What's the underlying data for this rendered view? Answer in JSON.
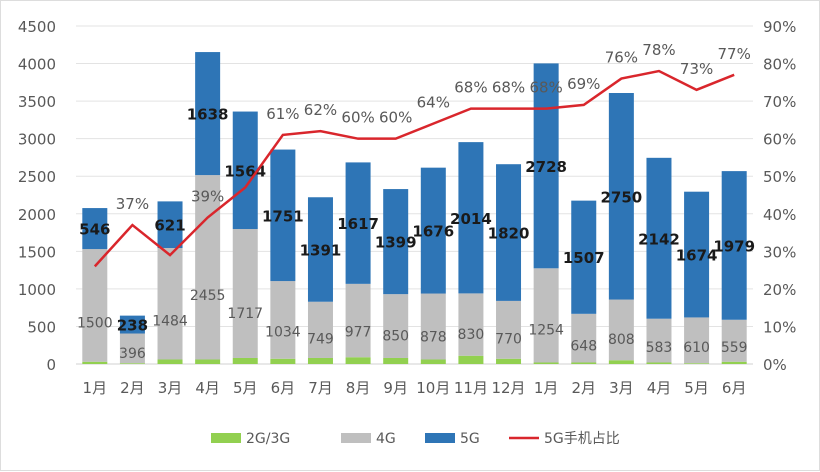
{
  "chart_data": {
    "type": "bar",
    "title": "",
    "categories": [
      "1月",
      "2月",
      "3月",
      "4月",
      "5月",
      "6月",
      "7月",
      "8月",
      "9月",
      "10月",
      "11月",
      "12月",
      "1月",
      "2月",
      "3月",
      "4月",
      "5月",
      "6月"
    ],
    "series": [
      {
        "name": "2G/3G",
        "type": "bar",
        "color": "#92d050",
        "values": [
          30,
          10,
          60,
          60,
          80,
          70,
          80,
          90,
          80,
          60,
          110,
          70,
          20,
          20,
          50,
          20,
          10,
          30
        ]
      },
      {
        "name": "4G",
        "type": "bar",
        "color": "#bfbfbf",
        "values": [
          1500,
          396,
          1484,
          2455,
          1717,
          1034,
          749,
          977,
          850,
          878,
          830,
          770,
          1254,
          648,
          808,
          583,
          610,
          559
        ]
      },
      {
        "name": "5G",
        "type": "bar",
        "color": "#2e75b6",
        "values": [
          546,
          238,
          621,
          1638,
          1564,
          1751,
          1391,
          1617,
          1399,
          1676,
          2014,
          1820,
          2728,
          1507,
          2750,
          2142,
          1674,
          1979
        ]
      },
      {
        "name": "5G手机占比",
        "type": "line",
        "axis": "right",
        "color": "#d9262c",
        "values": [
          26,
          37,
          29,
          39,
          47,
          61,
          62,
          60,
          60,
          64,
          68,
          68,
          68,
          69,
          76,
          78,
          73,
          77
        ],
        "labels": [
          "",
          "37%",
          "",
          "39%",
          "",
          "61%",
          "62%",
          "60%",
          "60%",
          "64%",
          "68%",
          "68%",
          "68%",
          "69%",
          "76%",
          "78%",
          "73%",
          "77%"
        ]
      }
    ],
    "left_axis": {
      "range": [
        0,
        4500
      ],
      "ticks": [
        "0",
        "500",
        "1000",
        "1500",
        "2000",
        "2500",
        "3000",
        "3500",
        "4000",
        "4500"
      ]
    },
    "right_axis": {
      "range": [
        0,
        90
      ],
      "ticks": [
        "0%",
        "10%",
        "20%",
        "30%",
        "40%",
        "50%",
        "60%",
        "70%",
        "80%",
        "90%"
      ]
    },
    "grid": true,
    "legend": "bottom",
    "stacked": true
  }
}
